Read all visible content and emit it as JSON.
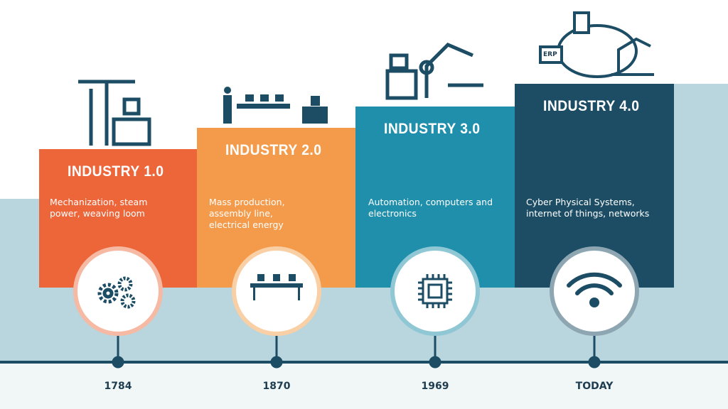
{
  "stages": [
    {
      "title": "INDUSTRY 1.0",
      "description": "Mechanization, steam power, weaving loom",
      "year": "1784"
    },
    {
      "title": "INDUSTRY 2.0",
      "description": "Mass production, assembly line, electrical energy",
      "year": "1870"
    },
    {
      "title": "INDUSTRY 3.0",
      "description": "Automation, computers and electronics",
      "year": "1969"
    },
    {
      "title": "INDUSTRY 4.0",
      "description": "Cyber Physical Systems, internet of things, networks",
      "year": "TODAY"
    }
  ],
  "icon_labels": {
    "erp": "ERP"
  }
}
